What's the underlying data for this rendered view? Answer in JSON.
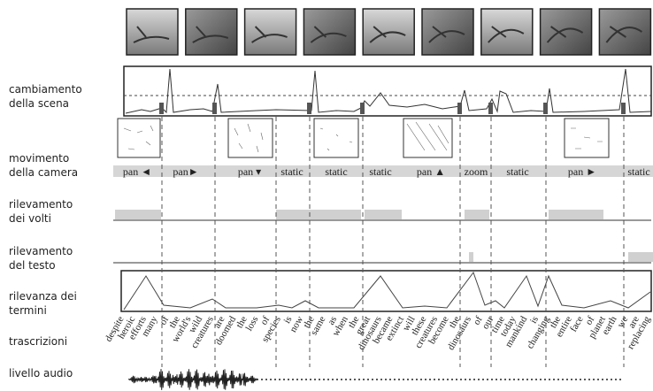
{
  "row_labels": [
    [
      "cambiamento",
      "della scena"
    ],
    [
      "movimento",
      "della camera"
    ],
    [
      "rilevamento",
      "dei volti"
    ],
    [
      "rilevamento",
      "del testo"
    ],
    [
      "rilevanza dei",
      "termini"
    ],
    [
      "trascrizioni"
    ],
    [
      "livello audio"
    ]
  ],
  "camera_motion": [
    "pan ◄",
    "pan►",
    "pan ▾",
    "static",
    "static",
    "static",
    "pan ▲",
    "zoom",
    "static",
    "pan ►",
    "static"
  ],
  "transcript": [
    "despite",
    "heroic",
    "efforts",
    "many",
    "of",
    "the",
    "world's",
    "wild",
    "creatures",
    "are",
    "doomed",
    "the",
    "loss",
    "of",
    "species",
    "is",
    "now",
    "the",
    "same",
    "as",
    "when",
    "the",
    "great",
    "dinosaurs",
    "became",
    "extinct",
    "will",
    "these",
    "creatures",
    "become",
    "the",
    "dinosaurs",
    "of",
    "our",
    "time",
    "today",
    "mankind",
    "is",
    "changing",
    "the",
    "entire",
    "face",
    "of",
    "planet",
    "earth",
    "we",
    "are",
    "replacing"
  ]
}
